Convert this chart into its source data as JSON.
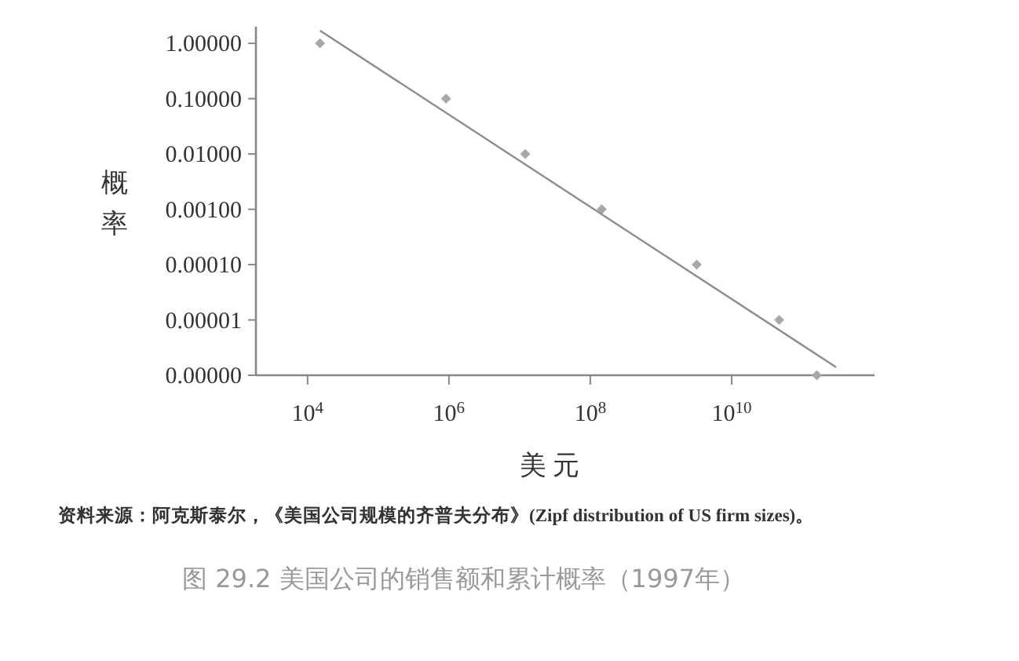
{
  "chart_data": {
    "type": "scatter",
    "xlabel": "美 元",
    "ylabel": "概率",
    "series": [
      {
        "marker": "diamond",
        "color": "#a8a8a8",
        "x": [
          15000,
          910000,
          12000000,
          145000000,
          3200000000,
          47000000000,
          160000000000
        ],
        "values": [
          1,
          0.1,
          0.01,
          0.001,
          0.0001,
          1e-05,
          1e-06
        ]
      },
      {
        "type": "line",
        "color": "#8c8c8c",
        "x": [
          15000,
          300000000000
        ],
        "values": [
          1.7,
          1.4e-06
        ]
      }
    ],
    "log": "xy",
    "xlim": [
      1860,
      1050000000000
    ],
    "xticks": [
      {
        "value": 10000,
        "label": "10$^{4}$"
      },
      {
        "value": 1000000,
        "label": "10$^{6}$"
      },
      {
        "value": 100000000,
        "label": "10$^{8}$"
      },
      {
        "value": 10000000000,
        "label": "10$^{10}$"
      }
    ],
    "ylim": [
      1e-06,
      2
    ],
    "yticks": [
      {
        "value": 1,
        "label": "1.00000"
      },
      {
        "value": 0.1,
        "label": "0.10000"
      },
      {
        "value": 0.01,
        "label": "0.01000"
      },
      {
        "value": 0.001,
        "label": "0.00100"
      },
      {
        "value": 0.0001,
        "label": "0.00010"
      },
      {
        "value": 1e-05,
        "label": "0.00001"
      },
      {
        "value": 1e-06,
        "label": "0.00000"
      }
    ],
    "grid": false,
    "annotations": [
      "资料来源：阿克斯泰尔，《美国公司规模的齐普夫分布》(Zipf distribution of US firm sizes)。",
      "图 29.2    美国公司的销售额和累计概率（1997年）"
    ]
  }
}
